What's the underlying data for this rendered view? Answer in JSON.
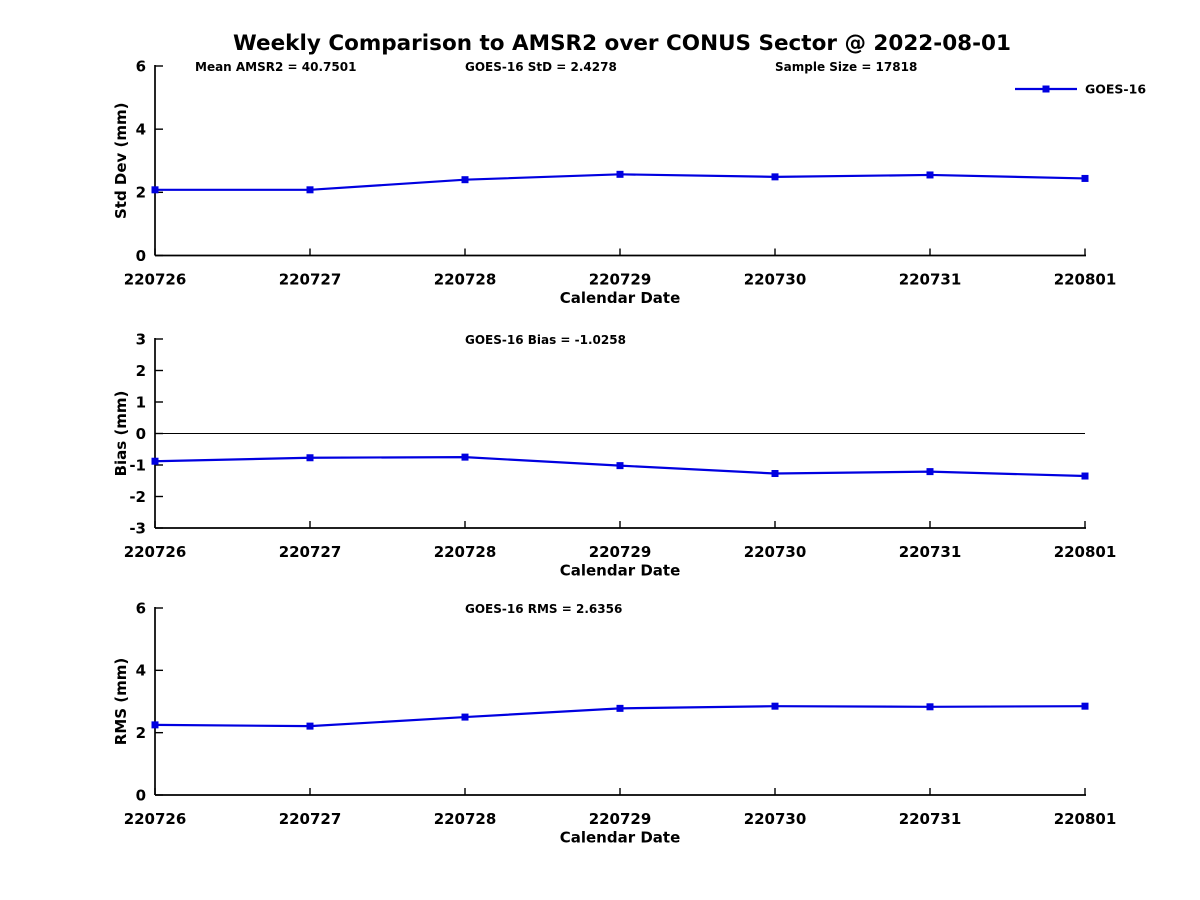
{
  "title": "Weekly Comparison to AMSR2 over CONUS Sector @ 2022-08-01",
  "legend": {
    "label": "GOES-16"
  },
  "colors": {
    "line": "#0000e0",
    "axis": "#000000",
    "text": "#000000",
    "background": "#ffffff"
  },
  "x_axis": {
    "label": "Calendar Date",
    "categories": [
      "220726",
      "220727",
      "220728",
      "220729",
      "220730",
      "220731",
      "220801"
    ]
  },
  "chart_data": [
    {
      "type": "line",
      "name": "std-dev",
      "ylabel": "Std Dev (mm)",
      "xlabel": "Calendar Date",
      "categories": [
        "220726",
        "220727",
        "220728",
        "220729",
        "220730",
        "220731",
        "220801"
      ],
      "series": [
        {
          "name": "GOES-16",
          "values": [
            2.08,
            2.08,
            2.4,
            2.57,
            2.49,
            2.55,
            2.44
          ]
        }
      ],
      "ylim": [
        0,
        6
      ],
      "yticks": [
        0,
        2,
        4,
        6
      ],
      "zero_line": false,
      "grid": false,
      "annotations": [
        "Mean AMSR2 = 40.7501",
        "GOES-16 StD = 2.4278",
        "Sample Size = 17818"
      ]
    },
    {
      "type": "line",
      "name": "bias",
      "ylabel": "Bias (mm)",
      "xlabel": "Calendar Date",
      "categories": [
        "220726",
        "220727",
        "220728",
        "220729",
        "220730",
        "220731",
        "220801"
      ],
      "series": [
        {
          "name": "GOES-16",
          "values": [
            -0.88,
            -0.77,
            -0.75,
            -1.02,
            -1.27,
            -1.21,
            -1.35
          ]
        }
      ],
      "ylim": [
        -3,
        3
      ],
      "yticks": [
        -3,
        -2,
        -1,
        0,
        1,
        2,
        3
      ],
      "zero_line": true,
      "grid": false,
      "annotations": [
        "GOES-16 Bias  = -1.0258"
      ]
    },
    {
      "type": "line",
      "name": "rms",
      "ylabel": "RMS (mm)",
      "xlabel": "Calendar Date",
      "categories": [
        "220726",
        "220727",
        "220728",
        "220729",
        "220730",
        "220731",
        "220801"
      ],
      "series": [
        {
          "name": "GOES-16",
          "values": [
            2.25,
            2.21,
            2.5,
            2.78,
            2.85,
            2.83,
            2.85
          ]
        }
      ],
      "ylim": [
        0,
        6
      ],
      "yticks": [
        0,
        2,
        4,
        6
      ],
      "zero_line": false,
      "grid": false,
      "annotations": [
        "GOES-16 RMS = 2.6356"
      ]
    }
  ]
}
